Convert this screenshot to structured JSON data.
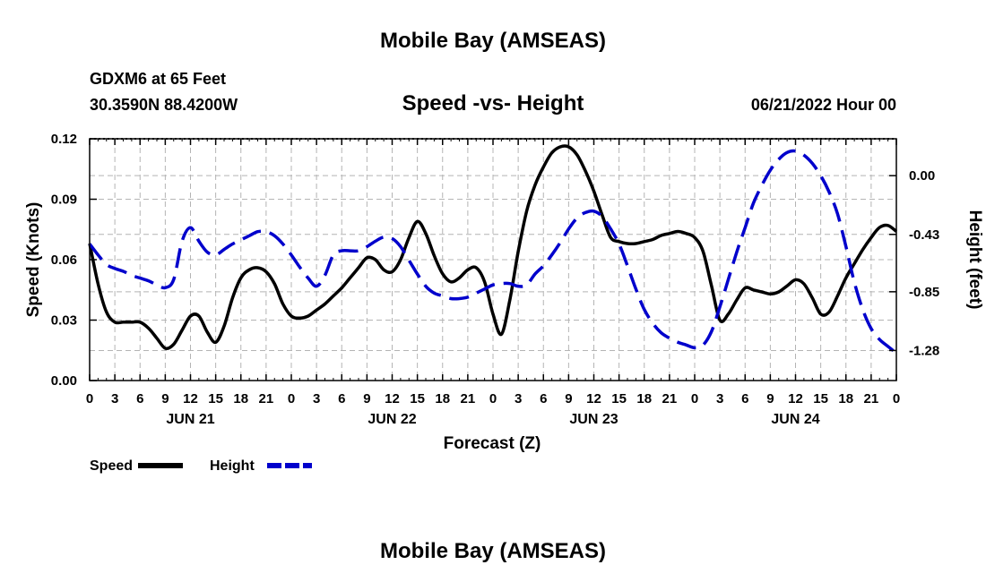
{
  "page": {
    "title": "Mobile Bay (AMSEAS)",
    "footer_title": "Mobile Bay (AMSEAS)",
    "station": "GDXM6 at 65 Feet",
    "location": "30.3590N  88.4200W",
    "subtitle": "Speed -vs- Height",
    "date": "06/21/2022 Hour 00"
  },
  "chart_data": {
    "type": "line",
    "title": "Speed -vs- Height",
    "xlabel": "Forecast (Z)",
    "ylabel": "Speed (Knots)",
    "y2label": "Height (feet)",
    "xlim": [
      0,
      96
    ],
    "ylim": [
      0,
      0.12
    ],
    "y2lim": [
      -1.5,
      0.27
    ],
    "x_tick_labels": [
      "0",
      "3",
      "6",
      "9",
      "12",
      "15",
      "18",
      "21",
      "0",
      "3",
      "6",
      "9",
      "12",
      "15",
      "18",
      "21",
      "0",
      "3",
      "6",
      "9",
      "12",
      "15",
      "18",
      "21",
      "0",
      "3",
      "6",
      "9",
      "12",
      "15",
      "18",
      "21",
      "0"
    ],
    "day_labels": [
      {
        "x": 12,
        "label": "JUN 21"
      },
      {
        "x": 36,
        "label": "JUN 22"
      },
      {
        "x": 60,
        "label": "JUN 23"
      },
      {
        "x": 84,
        "label": "JUN 24"
      }
    ],
    "y_ticks": [
      0.0,
      0.03,
      0.06,
      0.09,
      0.12
    ],
    "y_tick_labels": [
      "0.00",
      "0.03",
      "0.06",
      "0.09",
      "0.12"
    ],
    "y2_ticks": [
      0.0,
      -0.43,
      -0.85,
      -1.28
    ],
    "y2_tick_labels": [
      "0.00",
      "-0.43",
      "-0.85",
      "-1.28"
    ],
    "grid": true,
    "series": [
      {
        "name": "Speed",
        "axis": "left",
        "color": "#000000",
        "style": "solid",
        "x": [
          0,
          1,
          2,
          3,
          4,
          5,
          6,
          7,
          8,
          9,
          10,
          11,
          12,
          13,
          14,
          15,
          16,
          17,
          18,
          19,
          20,
          21,
          22,
          23,
          24,
          25,
          26,
          27,
          28,
          29,
          30,
          31,
          32,
          33,
          34,
          35,
          36,
          37,
          38,
          39,
          40,
          41,
          42,
          43,
          44,
          45,
          46,
          47,
          48,
          49,
          50,
          51,
          52,
          53,
          54,
          55,
          56,
          57,
          58,
          59,
          60,
          61,
          62,
          63,
          64,
          65,
          66,
          67,
          68,
          69,
          70,
          71,
          72,
          73,
          74,
          75,
          76,
          77,
          78,
          79,
          80,
          81,
          82,
          83,
          84,
          85,
          86,
          87,
          88,
          89,
          90,
          91,
          92,
          93,
          94,
          95,
          96
        ],
        "values": [
          0.068,
          0.048,
          0.034,
          0.029,
          0.029,
          0.029,
          0.029,
          0.026,
          0.021,
          0.016,
          0.018,
          0.025,
          0.032,
          0.032,
          0.024,
          0.019,
          0.027,
          0.041,
          0.051,
          0.055,
          0.056,
          0.054,
          0.048,
          0.038,
          0.032,
          0.031,
          0.032,
          0.035,
          0.038,
          0.042,
          0.046,
          0.051,
          0.056,
          0.061,
          0.06,
          0.055,
          0.054,
          0.06,
          0.071,
          0.079,
          0.073,
          0.062,
          0.053,
          0.049,
          0.051,
          0.055,
          0.056,
          0.049,
          0.033,
          0.023,
          0.04,
          0.064,
          0.084,
          0.097,
          0.106,
          0.113,
          0.116,
          0.116,
          0.112,
          0.104,
          0.094,
          0.082,
          0.071,
          0.069,
          0.068,
          0.068,
          0.069,
          0.07,
          0.072,
          0.073,
          0.074,
          0.073,
          0.071,
          0.064,
          0.047,
          0.03,
          0.033,
          0.04,
          0.046,
          0.045,
          0.044,
          0.043,
          0.044,
          0.047,
          0.05,
          0.048,
          0.041,
          0.033,
          0.034,
          0.042,
          0.051,
          0.058,
          0.065,
          0.071,
          0.076,
          0.077,
          0.074
        ]
      },
      {
        "name": "Height",
        "axis": "right",
        "color": "#0000cc",
        "style": "dashed",
        "x": [
          0,
          1,
          2,
          3,
          4,
          5,
          6,
          7,
          8,
          9,
          10,
          11,
          12,
          13,
          14,
          15,
          16,
          17,
          18,
          19,
          20,
          21,
          22,
          23,
          24,
          25,
          26,
          27,
          28,
          29,
          30,
          31,
          32,
          33,
          34,
          35,
          36,
          37,
          38,
          39,
          40,
          41,
          42,
          43,
          44,
          45,
          46,
          47,
          48,
          49,
          50,
          51,
          52,
          53,
          54,
          55,
          56,
          57,
          58,
          59,
          60,
          61,
          62,
          63,
          64,
          65,
          66,
          67,
          68,
          69,
          70,
          71,
          72,
          73,
          74,
          75,
          76,
          77,
          78,
          79,
          80,
          81,
          82,
          83,
          84,
          85,
          86,
          87,
          88,
          89,
          90,
          91,
          92,
          93,
          94,
          95,
          96
        ],
        "values": [
          -0.5,
          -0.58,
          -0.65,
          -0.68,
          -0.7,
          -0.73,
          -0.75,
          -0.77,
          -0.8,
          -0.82,
          -0.76,
          -0.48,
          -0.38,
          -0.48,
          -0.56,
          -0.58,
          -0.54,
          -0.5,
          -0.47,
          -0.44,
          -0.41,
          -0.41,
          -0.44,
          -0.5,
          -0.58,
          -0.67,
          -0.75,
          -0.81,
          -0.73,
          -0.58,
          -0.55,
          -0.55,
          -0.55,
          -0.52,
          -0.48,
          -0.45,
          -0.46,
          -0.52,
          -0.62,
          -0.72,
          -0.81,
          -0.86,
          -0.88,
          -0.9,
          -0.9,
          -0.89,
          -0.86,
          -0.83,
          -0.8,
          -0.79,
          -0.79,
          -0.81,
          -0.8,
          -0.72,
          -0.66,
          -0.58,
          -0.49,
          -0.39,
          -0.31,
          -0.27,
          -0.26,
          -0.3,
          -0.39,
          -0.5,
          -0.66,
          -0.83,
          -0.98,
          -1.08,
          -1.15,
          -1.19,
          -1.22,
          -1.24,
          -1.26,
          -1.24,
          -1.14,
          -0.96,
          -0.76,
          -0.56,
          -0.38,
          -0.2,
          -0.07,
          0.04,
          0.12,
          0.17,
          0.18,
          0.15,
          0.09,
          0.0,
          -0.12,
          -0.28,
          -0.52,
          -0.78,
          -0.98,
          -1.12,
          -1.2,
          -1.25,
          -1.3
        ]
      }
    ],
    "legend": [
      {
        "label": "Speed",
        "color": "#000000",
        "style": "solid"
      },
      {
        "label": "Height",
        "color": "#0000cc",
        "style": "dashed"
      }
    ]
  }
}
